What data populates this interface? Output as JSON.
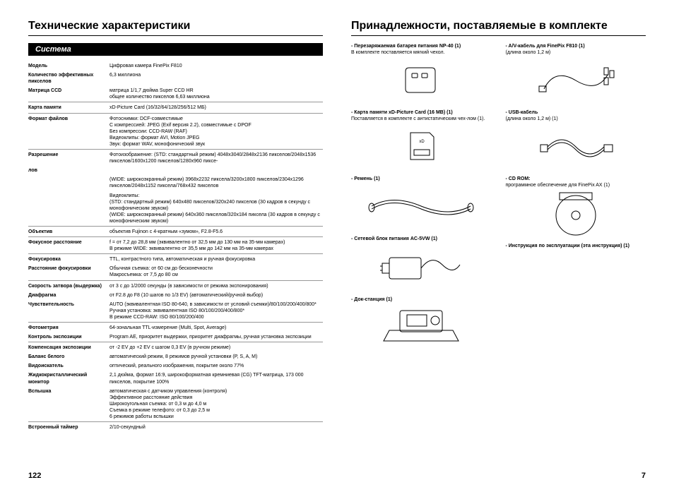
{
  "left": {
    "title": "Технические характеристики",
    "section": "Система",
    "pageNum": "122",
    "specs": [
      {
        "label": "Модель",
        "value": "Цифровая камера FinePix F810",
        "sep": false
      },
      {
        "label": "Количество эффективных пикселов",
        "value": "6,3 миллиона",
        "sep": false
      },
      {
        "label": "Матрица CCD",
        "value": "матрица 1/1,7 дюйма Super CCD HR\nобщее количество пикселов 6,63 миллиона",
        "sep": false
      },
      {
        "label": "Карта памяти",
        "value": "xD-Picture Card (16/32/64/128/256/512 МБ)",
        "sep": true
      },
      {
        "label": "Формат файлов",
        "value": "Фотоснимки: DCF-совместимые\nС компрессией: JPEG (Exif версия 2.2), совместимые с DPOF\nБез компрессии: CCD-RAW (RAF)\nВидеоклипы: формат AVI, Motion JPEG\nЗвук: формат WAV, монофонический звук",
        "sep": true
      },
      {
        "label": "Разрешение",
        "value": "Фотоизображение: (STD: стандартный режим) 4048x3040/2848x2136 пикселов/2048x1536 пикселов/1600x1200 пикселов/1280x960 пиксе-",
        "sep": true
      },
      {
        "label": "лов",
        "value": "",
        "sep": false
      },
      {
        "label": "",
        "value": "(WIDE: широкоэкранный режим) 3968x2232 пиксела/3200x1800 пикселов/2304x1296 пикселов/2048x1152 пиксела/768x432 пикселов",
        "sep": false
      },
      {
        "label": "",
        "value": "Видеоклипы:\n(STD: стандартный режим) 640x480 пикселов/320x240 пикселов (30 кадров в секунду с монофоническим звуком)\n(WIDE: широкоэкранный режим) 640x360 пикселов/320x184 пиксела (30 кадров в секунду с монофоническим звуком)",
        "sep": false
      },
      {
        "label": "Объектив",
        "value": "объектив Fujinon с 4-кратным «зумом», F2.8-F5.6",
        "sep": true
      },
      {
        "label": "Фокусное расстояние",
        "value": "f = от 7,2 до 28,8 мм (эквивалентно от 32,5 мм до 130 мм на 35-мм камерах)\nВ режиме WIDE: эквивалентно от 35,5 мм до 142 мм на 35-мм камерах",
        "sep": true
      },
      {
        "label": "Фокусировка",
        "value": "TTL, контрастного типа, автоматическая и ручная фокусировка",
        "sep": true
      },
      {
        "label": "Расстояние фокусировки",
        "value": "Обычная съемка: от 60 см до бесконечности\nМакросъемка: от 7,5 до 80 см",
        "sep": false
      },
      {
        "label": "Скорость затвора (выдержка)",
        "value": "от 3 с до 1/2000 секунды (в зависимости от режима экспонирования)",
        "sep": true
      },
      {
        "label": "Диафрагма",
        "value": "от F2.8 до F8 (10 шагов по 1/3 EV) (автоматический/ручной выбор)",
        "sep": false
      },
      {
        "label": "Чувствительность",
        "value": "AUTO (эквивалентная ISO 80-640, в зависимости от условий съемки)/80/100/200/400/800*\nРучная установка: эквивалентная ISO 80/100/200/400/800*\nВ режиме CCD-RAW: ISO 80/100/200/400",
        "sep": false
      },
      {
        "label": "Фотометрия",
        "value": "64-зональная TTL-измерение (Multi, Spot, Average)",
        "sep": true
      },
      {
        "label": "Контроль экспозиции",
        "value": "Program AE, приоритет выдержки, приоритет диафрагмы, ручная установка экспозиции",
        "sep": false
      },
      {
        "label": "Компенсация экспозиции",
        "value": "от -2 EV до +2 EV с шагом 0,3 EV (в ручном режиме)",
        "sep": true
      },
      {
        "label": "Баланс белого",
        "value": "автоматический режим, 8 режимов ручной установки (P, S, A, M)",
        "sep": false
      },
      {
        "label": "Видоискатель",
        "value": "оптический, реального изображения, покрытие около 77%",
        "sep": false
      },
      {
        "label": "Жидкокристаллический монитор",
        "value": "2,1 дюйма, формат 16:9, широкоформатная кремниевая (CG) TFT-матрица, 173 000 пикселов, покрытие 100%",
        "sep": false
      },
      {
        "label": "Вспышка",
        "value": "автоматическая с датчиком управления (контроля)\nЭффективное расстояние действия\nШирокоугольная съемка: от 0,3 м до 4,0 м\nСъемка в режиме телефото: от 0,3 до 2,5 м\n6 режимов работы вспышки",
        "sep": false
      },
      {
        "label": "Встроенный таймер",
        "value": "2/10-секундный",
        "sep": true
      }
    ]
  },
  "right": {
    "title": "Принадлежности, поставляемые в комплекте",
    "pageNum": "7",
    "leftCol": [
      {
        "label": "- Перезаряжаемая батарея питания NP-40 (1)",
        "sub": "В комплекте поставляется мягкий чехол.",
        "icon": "battery"
      },
      {
        "label": "- Карта памяти xD-Picture Card (16 MB) (1)",
        "sub": "Поставляется в комплекте с антистатическим чех-лом (1).",
        "icon": "card"
      },
      {
        "label": "- Ремень (1)",
        "sub": "",
        "icon": "strap"
      },
      {
        "label": "- Сетевой блок питания AC-5VW (1)",
        "sub": "",
        "icon": "adapter"
      },
      {
        "label": "- Док-станция (1)",
        "sub": "",
        "icon": "dock"
      }
    ],
    "rightCol": [
      {
        "label": "- A/V-кабель для FinePix F810 (1)",
        "sub": "(длина около 1,2 м)",
        "icon": "avcable"
      },
      {
        "label": "- USB-кабель",
        "sub": "(длина около 1,2 м) (1)",
        "icon": "usbcable"
      },
      {
        "label": "- CD ROM:",
        "sub": "программное обеспечение для FinePix AX (1)",
        "icon": "cd"
      },
      {
        "label": "- Инструкция по эксплуатации (эта инструкция) (1)",
        "sub": "",
        "icon": ""
      }
    ]
  }
}
